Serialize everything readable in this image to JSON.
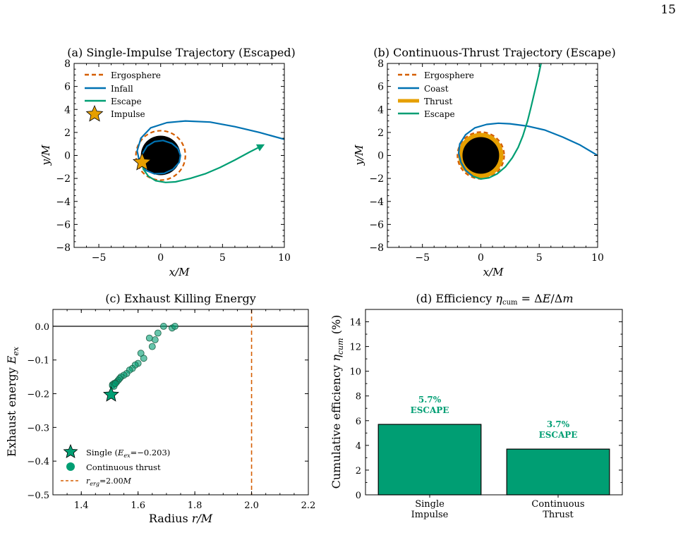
{
  "page_number": "15",
  "colors": {
    "ergosphere": "#d55e00",
    "infall": "#0072b2",
    "escape": "#009e73",
    "impulse_star": "#e69f00",
    "thrust": "#e69f00",
    "bar": "#009e73",
    "label_green": "#009e73",
    "black_hole": "#000000"
  },
  "chart_data": [
    {
      "id": "a",
      "type": "line",
      "title": "(a) Single-Impulse Trajectory (Escaped)",
      "xlabel": "x/M",
      "ylabel": "y/M",
      "xlim": [
        -7,
        10
      ],
      "ylim": [
        -8,
        8
      ],
      "xticks": [
        -5,
        0,
        5,
        10
      ],
      "yticks": [
        -8,
        -6,
        -4,
        -2,
        0,
        2,
        4,
        6,
        8
      ],
      "legend": [
        "Ergosphere",
        "Infall",
        "Escape",
        "Impulse"
      ],
      "legend_position": "top-left",
      "black_hole_radius": 1.6,
      "ergosphere_radius": 2.0,
      "series": [
        {
          "name": "Infall",
          "x": [
            10,
            8,
            6,
            4,
            2,
            0.5,
            -0.8,
            -1.6,
            -1.9,
            -1.7,
            -1.2,
            -0.5,
            0.3,
            1.0,
            1.5,
            1.6,
            1.4,
            0.9,
            0.2,
            -0.5,
            -1.1,
            -1.5
          ],
          "y": [
            1.4,
            2.0,
            2.5,
            2.9,
            3.0,
            2.85,
            2.4,
            1.5,
            0.4,
            -0.6,
            -1.3,
            -1.6,
            -1.55,
            -1.2,
            -0.6,
            0.0,
            0.6,
            1.05,
            1.3,
            1.2,
            0.8,
            0.1
          ]
        },
        {
          "name": "Escape",
          "x": [
            -1.5,
            -1.4,
            -1.0,
            -0.4,
            0.4,
            1.2,
            2.4,
            3.6,
            4.8,
            6.0,
            7.2,
            8.3
          ],
          "y": [
            -0.6,
            -1.2,
            -1.8,
            -2.2,
            -2.35,
            -2.3,
            -2.0,
            -1.6,
            -1.05,
            -0.4,
            0.3,
            0.9
          ]
        },
        {
          "name": "Impulse",
          "x": [
            -1.5
          ],
          "y": [
            -0.6
          ]
        }
      ]
    },
    {
      "id": "b",
      "type": "line",
      "title": "(b) Continuous-Thrust Trajectory (Escape)",
      "xlabel": "x/M",
      "ylabel": "y/M",
      "xlim": [
        -8,
        10
      ],
      "ylim": [
        -8,
        8
      ],
      "xticks": [
        -5,
        0,
        5,
        10
      ],
      "yticks": [
        -8,
        -6,
        -4,
        -2,
        0,
        2,
        4,
        6,
        8
      ],
      "legend": [
        "Ergosphere",
        "Coast",
        "Thrust",
        "Escape"
      ],
      "legend_position": "top-left",
      "black_hole_radius": 1.6,
      "ergosphere_radius": 2.0,
      "thrust_radius": 1.75,
      "series": [
        {
          "name": "Coast",
          "x": [
            10,
            8.5,
            7,
            5.5,
            4,
            2.5,
            1.5,
            0.5,
            -0.5,
            -1.3,
            -1.8,
            -1.9,
            -1.7,
            -1.3,
            -0.7
          ],
          "y": [
            0.0,
            0.9,
            1.6,
            2.2,
            2.55,
            2.75,
            2.8,
            2.7,
            2.4,
            1.8,
            1.0,
            0.2,
            -0.6,
            -1.3,
            -1.8
          ]
        },
        {
          "name": "Escape",
          "x": [
            -0.7,
            0.0,
            0.7,
            1.4,
            2.1,
            2.7,
            3.2,
            3.6,
            4.0,
            4.3,
            4.6,
            4.9,
            5.2,
            5.4
          ],
          "y": [
            -1.8,
            -2.05,
            -1.95,
            -1.6,
            -1.0,
            -0.2,
            0.7,
            1.7,
            3.0,
            4.2,
            5.5,
            6.8,
            8.2,
            9.0
          ]
        }
      ]
    },
    {
      "id": "c",
      "type": "scatter",
      "title": "(c) Exhaust Killing Energy",
      "xlabel": "Radius r/M",
      "ylabel": "Exhaust energy E_ex",
      "xlim": [
        1.3,
        2.2
      ],
      "ylim": [
        -0.5,
        0.05
      ],
      "xticks": [
        1.4,
        1.6,
        1.8,
        2.0,
        2.2
      ],
      "yticks": [
        0.0,
        -0.1,
        -0.2,
        -0.3,
        -0.4,
        -0.5
      ],
      "legend": [
        "Single (E_ex=−0.203)",
        "Continuous thrust",
        "r_erg=2.00M"
      ],
      "legend_position": "bottom-left",
      "r_erg": 2.0,
      "series": [
        {
          "name": "Single",
          "x": [
            1.505
          ],
          "y": [
            -0.203
          ]
        },
        {
          "name": "Continuous thrust",
          "x": [
            1.69,
            1.72,
            1.73,
            1.67,
            1.66,
            1.64,
            1.65,
            1.61,
            1.62,
            1.6,
            1.59,
            1.58,
            1.57,
            1.56,
            1.55,
            1.54,
            1.535,
            1.53,
            1.525,
            1.52,
            1.515,
            1.51,
            1.51,
            1.515,
            1.52
          ],
          "y": [
            0.0,
            -0.005,
            0.0,
            -0.02,
            -0.04,
            -0.035,
            -0.06,
            -0.08,
            -0.095,
            -0.11,
            -0.115,
            -0.125,
            -0.13,
            -0.14,
            -0.145,
            -0.15,
            -0.155,
            -0.16,
            -0.165,
            -0.168,
            -0.17,
            -0.173,
            -0.176,
            -0.178,
            -0.17
          ]
        }
      ]
    },
    {
      "id": "d",
      "type": "bar",
      "title": "(d) Efficiency",
      "title_math": "η_cum = ΔE/Δm",
      "xlabel": "",
      "ylabel": "Cumulative efficiency η_cum (%)",
      "ylim": [
        0,
        15
      ],
      "yticks": [
        0,
        2,
        4,
        6,
        8,
        10,
        12,
        14
      ],
      "categories": [
        [
          "Single",
          "Impulse"
        ],
        [
          "Continuous",
          "Thrust"
        ]
      ],
      "values": [
        5.7,
        3.7
      ],
      "value_labels": [
        "5.7%",
        "3.7%"
      ],
      "status_labels": [
        "ESCAPE",
        "ESCAPE"
      ]
    }
  ]
}
